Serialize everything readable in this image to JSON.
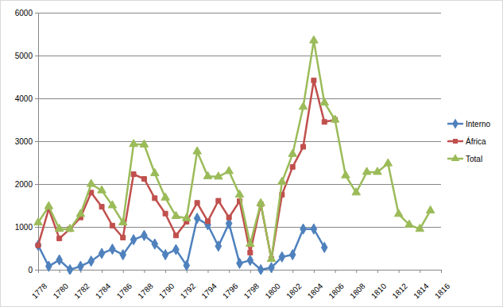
{
  "chart_data": {
    "type": "line",
    "x": [
      1778,
      1779,
      1780,
      1781,
      1782,
      1783,
      1784,
      1785,
      1786,
      1787,
      1788,
      1789,
      1790,
      1791,
      1792,
      1793,
      1794,
      1795,
      1796,
      1797,
      1798,
      1799,
      1800,
      1801,
      1802,
      1803,
      1804,
      1805,
      1806,
      1807,
      1808,
      1809,
      1810,
      1811,
      1812,
      1813,
      1814,
      1815
    ],
    "series": [
      {
        "name": "Interno",
        "color": "#4f81bd",
        "marker": "diamond",
        "values": [
          570,
          80,
          230,
          0,
          80,
          200,
          380,
          480,
          350,
          700,
          800,
          600,
          350,
          470,
          100,
          1200,
          1050,
          550,
          1080,
          150,
          220,
          0,
          50,
          300,
          350,
          950,
          950,
          520,
          null,
          null,
          null,
          null,
          null,
          null,
          null,
          null,
          null,
          null
        ]
      },
      {
        "name": "África",
        "color": "#c0504d",
        "marker": "square",
        "values": [
          570,
          1420,
          730,
          950,
          1220,
          1800,
          1470,
          1030,
          750,
          2230,
          2120,
          1670,
          1310,
          800,
          1120,
          1560,
          1130,
          1610,
          1220,
          1600,
          400,
          1530,
          250,
          1750,
          2400,
          2870,
          4420,
          3450,
          3500,
          null,
          null,
          null,
          null,
          null,
          null,
          null,
          null,
          null
        ]
      },
      {
        "name": "Total",
        "color": "#9bbb59",
        "marker": "triangle",
        "values": [
          1100,
          1480,
          950,
          950,
          1300,
          2000,
          1850,
          1500,
          1100,
          2930,
          2920,
          2250,
          1680,
          1250,
          1200,
          2760,
          2180,
          2170,
          2300,
          1750,
          600,
          1550,
          250,
          2050,
          2700,
          3800,
          5350,
          3900,
          3500,
          2200,
          1800,
          2280,
          2280,
          2480,
          1300,
          1050,
          950,
          1380
        ]
      }
    ],
    "xlim": [
      1778,
      1816
    ],
    "xticks": [
      1778,
      1780,
      1782,
      1784,
      1786,
      1788,
      1790,
      1792,
      1794,
      1796,
      1798,
      1800,
      1802,
      1804,
      1806,
      1808,
      1810,
      1812,
      1814,
      1816
    ],
    "ylim": [
      0,
      6000
    ],
    "yticks": [
      0,
      1000,
      2000,
      3000,
      4000,
      5000,
      6000
    ],
    "grid": true,
    "legend": "right"
  }
}
